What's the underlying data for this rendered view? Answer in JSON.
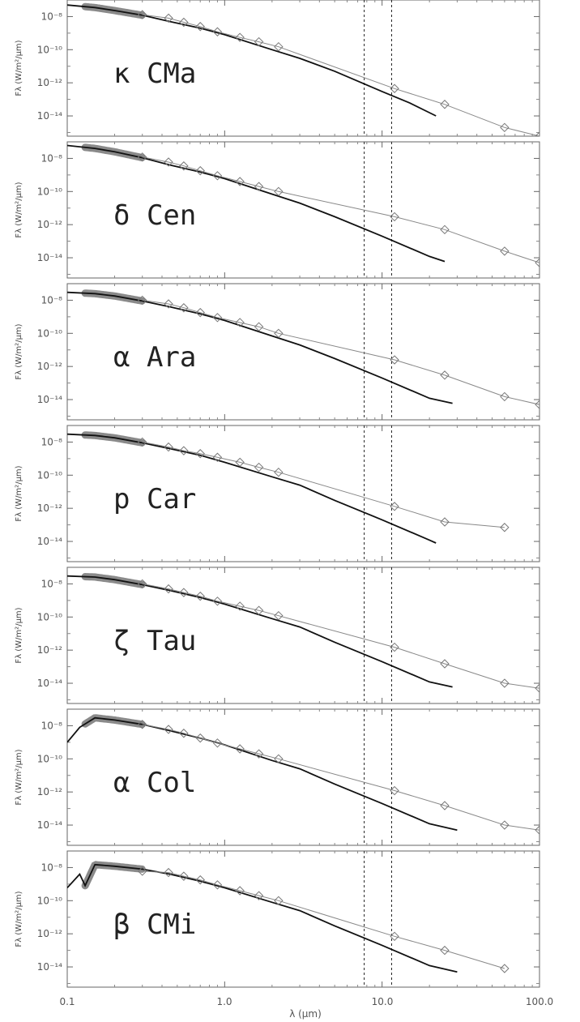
{
  "figure": {
    "xlabel": "λ (μm)",
    "ylabel": "Fλ (W/m²/μm)",
    "x_ticks": [
      "0.1",
      "1.0",
      "10.0",
      "100.0"
    ],
    "y_ticks": [
      "10⁻⁸",
      "10⁻¹⁰",
      "10⁻¹²",
      "10⁻¹⁴"
    ]
  },
  "chart_data": [
    {
      "type": "line",
      "title": "κ CMa",
      "xlabel": "λ (μm)",
      "ylabel": "Fλ (W/m²/μm)",
      "x_scale": "log",
      "y_scale": "log",
      "xlim": [
        0.1,
        100
      ],
      "ylim": [
        6e-16,
        1e-07
      ],
      "vlines": [
        7.7,
        11.5
      ],
      "series": [
        {
          "kind": "model",
          "x": [
            0.1,
            0.15,
            0.2,
            0.3,
            0.45,
            0.7,
            1.0,
            2.0,
            3.0,
            5.0,
            10.0,
            15.0,
            22.0
          ],
          "y": [
            5e-08,
            3.5e-08,
            2.3e-08,
            1.2e-08,
            5e-09,
            2e-09,
            8e-10,
            1e-10,
            3e-11,
            5e-12,
            3e-13,
            6e-14,
            1e-14
          ]
        },
        {
          "kind": "observed",
          "x": [
            0.3,
            0.44,
            0.55,
            0.7,
            0.9,
            1.25,
            1.65,
            2.2,
            12,
            25,
            60,
            100
          ],
          "y": [
            1.3e-08,
            8e-09,
            4.5e-09,
            2.5e-09,
            1.2e-09,
            5.5e-10,
            3e-10,
            1.5e-10,
            4.5e-13,
            5e-14,
            2e-15,
            6e-16
          ]
        }
      ]
    },
    {
      "type": "line",
      "title": "δ Cen",
      "xlabel": "λ (μm)",
      "ylabel": "Fλ (W/m²/μm)",
      "x_scale": "log",
      "y_scale": "log",
      "xlim": [
        0.1,
        100
      ],
      "ylim": [
        6e-16,
        1e-07
      ],
      "vlines": [
        7.7,
        11.5
      ],
      "series": [
        {
          "kind": "model",
          "x": [
            0.1,
            0.15,
            0.2,
            0.3,
            0.45,
            0.7,
            1.0,
            2.0,
            3.0,
            5.0,
            10.0,
            20.0,
            25.0
          ],
          "y": [
            6e-08,
            4e-08,
            2.5e-08,
            1.1e-08,
            4e-09,
            1.5e-09,
            6e-10,
            7e-11,
            2e-11,
            3e-12,
            2e-13,
            1.2e-14,
            6e-15
          ]
        },
        {
          "kind": "observed",
          "x": [
            0.3,
            0.44,
            0.55,
            0.7,
            0.9,
            1.25,
            1.65,
            2.2,
            12,
            25,
            60,
            100
          ],
          "y": [
            1.2e-08,
            6e-09,
            3.5e-09,
            1.8e-09,
            9e-10,
            4e-10,
            2e-10,
            1e-10,
            3e-12,
            5e-13,
            2.5e-14,
            5e-15
          ]
        }
      ]
    },
    {
      "type": "line",
      "title": "α Ara",
      "xlabel": "λ (μm)",
      "ylabel": "Fλ (W/m²/μm)",
      "x_scale": "log",
      "y_scale": "log",
      "xlim": [
        0.1,
        100
      ],
      "ylim": [
        6e-16,
        1e-07
      ],
      "vlines": [
        7.7,
        11.5
      ],
      "series": [
        {
          "kind": "model",
          "x": [
            0.1,
            0.15,
            0.2,
            0.3,
            0.45,
            0.7,
            1.0,
            2.0,
            3.0,
            5.0,
            10.0,
            20.0,
            28.0
          ],
          "y": [
            3e-08,
            2.5e-08,
            1.8e-08,
            9e-09,
            4e-09,
            1.5e-09,
            6e-10,
            7e-11,
            2e-11,
            3e-12,
            2e-13,
            1.2e-14,
            6e-15
          ]
        },
        {
          "kind": "observed",
          "x": [
            0.3,
            0.44,
            0.55,
            0.7,
            0.9,
            1.25,
            1.65,
            2.2,
            12,
            25,
            60,
            100
          ],
          "y": [
            1e-08,
            6e-09,
            3.5e-09,
            1.8e-09,
            9e-10,
            4.5e-10,
            2.5e-10,
            1e-10,
            2.5e-12,
            3e-13,
            1.5e-14,
            5e-15
          ]
        }
      ]
    },
    {
      "type": "line",
      "title": "p Car",
      "xlabel": "λ (μm)",
      "ylabel": "Fλ (W/m²/μm)",
      "x_scale": "log",
      "y_scale": "log",
      "xlim": [
        0.1,
        100
      ],
      "ylim": [
        6e-16,
        1e-07
      ],
      "vlines": [
        7.7,
        11.5
      ],
      "series": [
        {
          "kind": "model",
          "x": [
            0.1,
            0.15,
            0.2,
            0.3,
            0.45,
            0.7,
            1.0,
            2.0,
            3.0,
            5.0,
            10.0,
            20.0,
            22.0
          ],
          "y": [
            3e-08,
            2.5e-08,
            1.8e-08,
            9e-09,
            4e-09,
            1.6e-09,
            6e-10,
            8e-11,
            2.5e-11,
            3e-12,
            2e-13,
            1.2e-14,
            8e-15
          ]
        },
        {
          "kind": "observed",
          "x": [
            0.3,
            0.44,
            0.55,
            0.7,
            0.9,
            1.25,
            1.65,
            2.2,
            12,
            25,
            60
          ],
          "y": [
            1e-08,
            5e-09,
            3e-09,
            2e-09,
            1.2e-09,
            6e-10,
            3e-10,
            1.5e-10,
            1.3e-12,
            1.5e-13,
            7e-14
          ]
        }
      ]
    },
    {
      "type": "line",
      "title": "ζ Tau",
      "xlabel": "λ (μm)",
      "ylabel": "Fλ (W/m²/μm)",
      "x_scale": "log",
      "y_scale": "log",
      "xlim": [
        0.1,
        100
      ],
      "ylim": [
        6e-16,
        1e-07
      ],
      "vlines": [
        7.7,
        11.5
      ],
      "series": [
        {
          "kind": "model",
          "x": [
            0.1,
            0.15,
            0.2,
            0.3,
            0.45,
            0.7,
            1.0,
            2.0,
            3.0,
            5.0,
            10.0,
            20.0,
            28.0
          ],
          "y": [
            3e-08,
            2.6e-08,
            1.8e-08,
            9e-09,
            4e-09,
            1.5e-09,
            6e-10,
            8e-11,
            2.5e-11,
            3e-12,
            2e-13,
            1.2e-14,
            6e-15
          ]
        },
        {
          "kind": "observed",
          "x": [
            0.3,
            0.44,
            0.55,
            0.7,
            0.9,
            1.25,
            1.65,
            2.2,
            12,
            25,
            60,
            100
          ],
          "y": [
            1e-08,
            5e-09,
            3e-09,
            1.8e-09,
            9e-10,
            4.5e-10,
            2.5e-10,
            1.2e-10,
            1.5e-12,
            1.5e-13,
            1e-14,
            5e-15
          ]
        }
      ]
    },
    {
      "type": "line",
      "title": "α Col",
      "xlabel": "λ (μm)",
      "ylabel": "Fλ (W/m²/μm)",
      "x_scale": "log",
      "y_scale": "log",
      "xlim": [
        0.1,
        100
      ],
      "ylim": [
        6e-16,
        1e-07
      ],
      "vlines": [
        7.7,
        11.5
      ],
      "series": [
        {
          "kind": "model",
          "x": [
            0.1,
            0.12,
            0.15,
            0.2,
            0.3,
            0.45,
            0.7,
            1.0,
            2.0,
            3.0,
            5.0,
            10.0,
            20.0,
            30.0
          ],
          "y": [
            1e-09,
            8e-09,
            3e-08,
            2.2e-08,
            1.2e-08,
            5e-09,
            1.8e-09,
            7e-10,
            8e-11,
            2.5e-11,
            3e-12,
            2e-13,
            1.2e-14,
            5e-15
          ]
        },
        {
          "kind": "observed",
          "x": [
            0.3,
            0.44,
            0.55,
            0.7,
            0.9,
            1.25,
            1.65,
            2.2,
            12,
            25,
            60,
            100
          ],
          "y": [
            1.2e-08,
            6e-09,
            3.5e-09,
            1.8e-09,
            9e-10,
            4e-10,
            2e-10,
            1e-10,
            1.2e-12,
            1.5e-13,
            1e-14,
            5e-15
          ]
        }
      ]
    },
    {
      "type": "line",
      "title": "β CMi",
      "xlabel": "λ (μm)",
      "ylabel": "Fλ (W/m²/μm)",
      "x_scale": "log",
      "y_scale": "log",
      "xlim": [
        0.1,
        100
      ],
      "ylim": [
        6e-16,
        1e-07
      ],
      "vlines": [
        7.7,
        11.5
      ],
      "series": [
        {
          "kind": "model",
          "x": [
            0.1,
            0.12,
            0.13,
            0.15,
            0.2,
            0.3,
            0.45,
            0.7,
            1.0,
            2.0,
            3.0,
            5.0,
            10.0,
            20.0,
            30.0
          ],
          "y": [
            6e-10,
            4e-09,
            8e-10,
            1.5e-08,
            1.2e-08,
            8e-09,
            4e-09,
            1.5e-09,
            6e-10,
            8e-11,
            2.5e-11,
            3e-12,
            2e-13,
            1.2e-14,
            5e-15
          ]
        },
        {
          "kind": "observed",
          "x": [
            0.3,
            0.44,
            0.55,
            0.7,
            0.9,
            1.25,
            1.65,
            2.2,
            12,
            25,
            60
          ],
          "y": [
            6e-09,
            5e-09,
            3e-09,
            1.8e-09,
            9e-10,
            4e-10,
            2e-10,
            1e-10,
            7e-13,
            1e-13,
            8e-15
          ]
        }
      ]
    }
  ]
}
